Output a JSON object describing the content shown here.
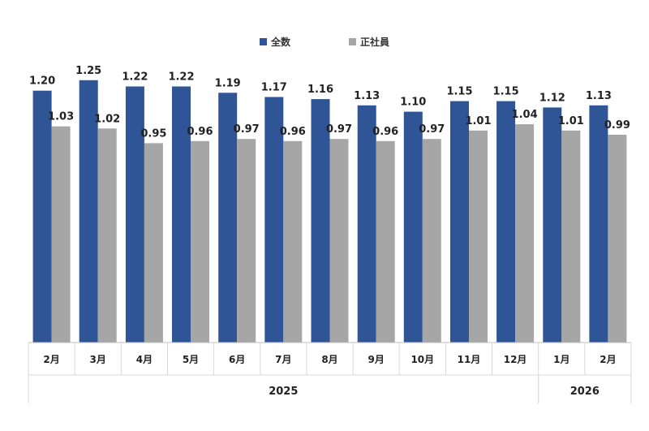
{
  "chart_data": {
    "type": "bar",
    "title": "",
    "xlabel": "",
    "ylabel": "",
    "ylim": [
      0,
      1.4
    ],
    "grid": false,
    "legend_position": "top-center",
    "categories": [
      "2月",
      "3月",
      "4月",
      "5月",
      "6月",
      "7月",
      "8月",
      "9月",
      "10月",
      "11月",
      "12月",
      "1月",
      "2月"
    ],
    "groups": [
      {
        "label": "2025",
        "count": 11
      },
      {
        "label": "2026",
        "count": 2
      }
    ],
    "series": [
      {
        "name": "全数",
        "color": "#2f5597",
        "values": [
          1.2,
          1.25,
          1.22,
          1.22,
          1.19,
          1.17,
          1.16,
          1.13,
          1.1,
          1.15,
          1.15,
          1.12,
          1.13
        ],
        "labels": [
          "1.20",
          "1.25",
          "1.22",
          "1.22",
          "1.19",
          "1.17",
          "1.16",
          "1.13",
          "1.10",
          "1.15",
          "1.15",
          "1.12",
          "1.13"
        ]
      },
      {
        "name": "正社員",
        "color": "#a6a6a6",
        "values": [
          1.03,
          1.02,
          0.95,
          0.96,
          0.97,
          0.96,
          0.97,
          0.96,
          0.97,
          1.01,
          1.04,
          1.01,
          0.99
        ],
        "labels": [
          "1.03",
          "1.02",
          "0.95",
          "0.96",
          "0.97",
          "0.96",
          "0.97",
          "0.96",
          "0.97",
          "1.01",
          "1.04",
          "1.01",
          "0.99"
        ]
      }
    ]
  }
}
